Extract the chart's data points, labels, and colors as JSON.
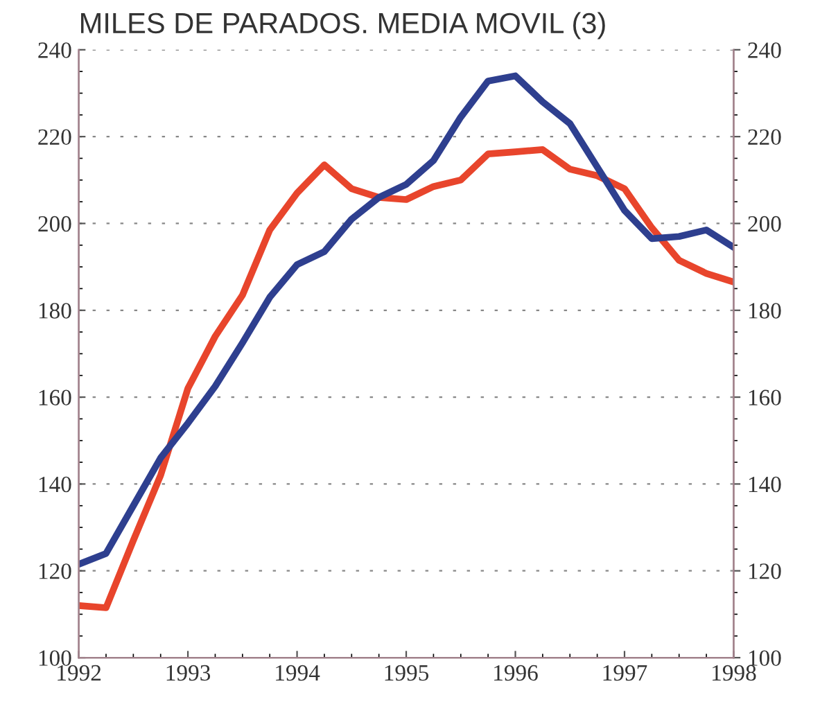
{
  "chart_data": {
    "type": "line",
    "title": "MILES DE PARADOS. MEDIA MOVIL (3)",
    "x": [
      1992,
      1992.25,
      1992.5,
      1992.75,
      1993,
      1993.25,
      1993.5,
      1993.75,
      1994,
      1994.25,
      1994.5,
      1994.75,
      1995,
      1995.25,
      1995.5,
      1995.75,
      1996,
      1996.25,
      1996.5,
      1996.75,
      1997,
      1997.25,
      1997.5,
      1997.75,
      1998
    ],
    "series": [
      {
        "color": "#e8452c",
        "values": [
          112,
          111.5,
          127,
          142,
          162,
          174,
          183.5,
          198.5,
          207,
          213.5,
          208,
          206,
          205.5,
          208.5,
          210,
          216,
          216.5,
          217,
          212.5,
          211,
          208,
          199,
          191.5,
          188.5,
          186.5
        ]
      },
      {
        "color": "#2e3f8f",
        "values": [
          121.5,
          124,
          135,
          146,
          154,
          162.5,
          172.5,
          183,
          190.5,
          193.5,
          201,
          206,
          209,
          214.5,
          224.5,
          232.8,
          234,
          228,
          223,
          213,
          203,
          196.5,
          197,
          198.5,
          194.5
        ]
      }
    ],
    "xlim": [
      1992,
      1998
    ],
    "xticks": [
      1992,
      1993,
      1994,
      1995,
      1996,
      1997,
      1998
    ],
    "ylim": [
      100,
      240
    ],
    "yticks": [
      100,
      120,
      140,
      160,
      180,
      200,
      220,
      240
    ],
    "y2lim": [
      100,
      240
    ],
    "y2ticks": [
      100,
      120,
      140,
      160,
      180,
      200,
      220,
      240
    ],
    "grid": "y",
    "line_style": "solid",
    "marker": "none",
    "legend": false
  }
}
